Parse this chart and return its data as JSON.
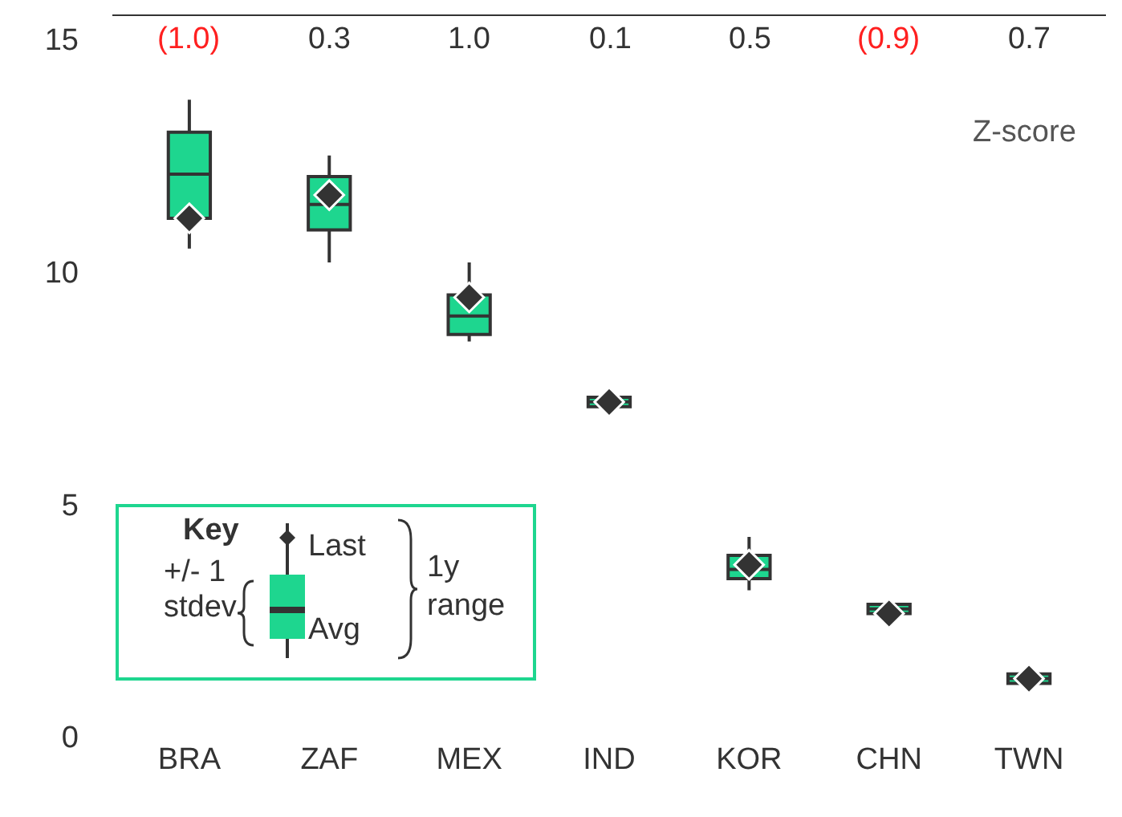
{
  "chart_data": {
    "type": "box",
    "categories": [
      "BRA",
      "ZAF",
      "MEX",
      "IND",
      "KOR",
      "CHN",
      "TWN"
    ],
    "boxes": [
      {
        "low": 10.5,
        "q1": 11.15,
        "median": 12.1,
        "q3": 13.0,
        "high": 13.7
      },
      {
        "low": 10.2,
        "q1": 10.9,
        "median": 11.45,
        "q3": 12.05,
        "high": 12.5
      },
      {
        "low": 8.5,
        "q1": 8.65,
        "median": 9.05,
        "q3": 9.5,
        "high": 10.2
      },
      {
        "low": 7.15,
        "q1": 7.1,
        "median": 7.2,
        "q3": 7.3,
        "high": 7.25
      },
      {
        "low": 3.15,
        "q1": 3.4,
        "median": 3.6,
        "q3": 3.9,
        "high": 4.3
      },
      {
        "low": 2.65,
        "q1": 2.65,
        "median": 2.75,
        "q3": 2.85,
        "high": 2.8
      },
      {
        "low": 1.15,
        "q1": 1.15,
        "median": 1.25,
        "q3": 1.35,
        "high": 1.35
      }
    ],
    "color": "#1ed68f",
    "series": [
      {
        "type": "scatter",
        "x": [
          "BRA",
          "ZAF",
          "MEX",
          "IND",
          "KOR",
          "CHN",
          "TWN"
        ],
        "values": [
          11.15,
          11.65,
          9.45,
          7.2,
          3.7,
          2.65,
          1.25
        ],
        "color": "#333333",
        "marker": "diamond"
      }
    ],
    "ylim": [
      0,
      15.5
    ],
    "yticks": [
      0,
      5,
      10,
      15
    ],
    "grid": false,
    "annotations": [
      "Z-score",
      "Key",
      "Last",
      "+/- 1 stdev",
      "Avg",
      "1y range",
      "(1.0)",
      "0.3",
      "1.0",
      "0.1",
      "0.5",
      "(0.9)",
      "0.7"
    ]
  }
}
